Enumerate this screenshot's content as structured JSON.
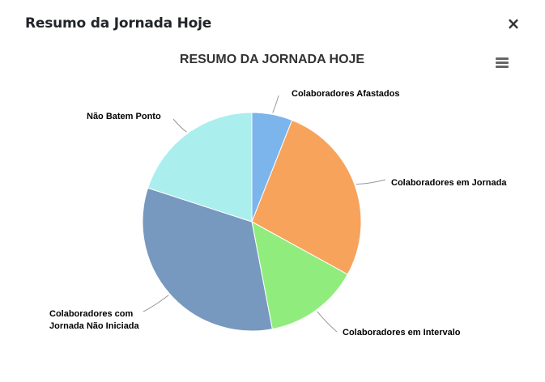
{
  "modal": {
    "title": "Resumo da Jornada Hoje",
    "close_icon": "close-icon",
    "close_label": "×"
  },
  "chart_menu_icon": "hamburger-menu-icon",
  "chart_data": {
    "type": "pie",
    "title": "RESUMO DA JORNADA HOJE",
    "slices": [
      {
        "label": "Colaboradores Afastados",
        "value": 6,
        "color": "#7cb5ec"
      },
      {
        "label": "Colaboradores em Jornada",
        "value": 27,
        "color": "#f7a35c"
      },
      {
        "label": "Colaboradores em Intervalo",
        "value": 14,
        "color": "#90ed7d"
      },
      {
        "label": "Colaboradores com Jornada Não Iniciada",
        "value": 33,
        "color": "#7798bf"
      },
      {
        "label": "Não Batem Ponto",
        "value": 20,
        "color": "#aaeeee"
      }
    ]
  }
}
